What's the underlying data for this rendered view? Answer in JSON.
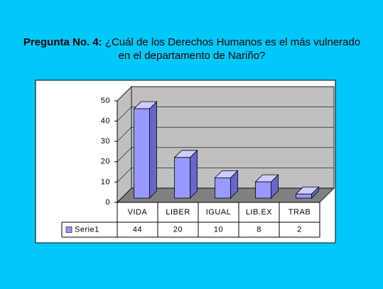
{
  "chart_data": {
    "type": "bar3d",
    "title_prefix": "Pregunta No. 4:",
    "title": "¿Cuál de los Derechos Humanos es el más vulnerado en el departamento de Nariño?",
    "categories": [
      "VIDA",
      "LIBER",
      "IGUAL",
      "LIB.EX",
      "TRAB"
    ],
    "series": [
      {
        "name": "Serie1",
        "color": "#9999ff",
        "values": [
          44,
          20,
          10,
          8,
          2
        ]
      }
    ],
    "ylim": [
      0,
      50
    ],
    "yticks": [
      0,
      10,
      20,
      30,
      40,
      50
    ],
    "grid": true
  }
}
